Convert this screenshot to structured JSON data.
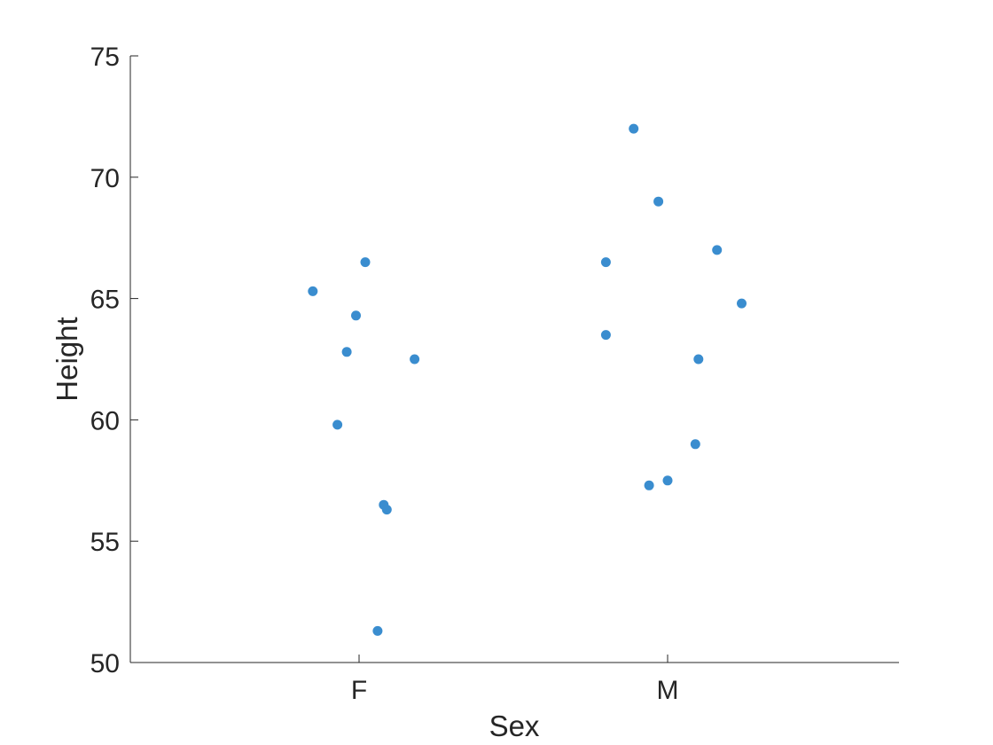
{
  "chart_data": {
    "type": "scatter",
    "title": "",
    "xlabel": "Sex",
    "ylabel": "Height",
    "categories": [
      "F",
      "M"
    ],
    "ylim": [
      50,
      75
    ],
    "yticks": [
      50,
      55,
      60,
      65,
      70,
      75
    ],
    "grid": false,
    "marker_color": "#3A8DCF",
    "points": [
      {
        "category": "F",
        "jitter": -0.15,
        "y": 65.3
      },
      {
        "category": "F",
        "jitter": 0.02,
        "y": 66.5
      },
      {
        "category": "F",
        "jitter": -0.01,
        "y": 64.3
      },
      {
        "category": "F",
        "jitter": -0.04,
        "y": 62.8
      },
      {
        "category": "F",
        "jitter": 0.18,
        "y": 62.5
      },
      {
        "category": "F",
        "jitter": -0.07,
        "y": 59.8
      },
      {
        "category": "F",
        "jitter": 0.08,
        "y": 56.5
      },
      {
        "category": "F",
        "jitter": 0.09,
        "y": 56.3
      },
      {
        "category": "F",
        "jitter": 0.06,
        "y": 51.3
      },
      {
        "category": "M",
        "jitter": -0.11,
        "y": 72.0
      },
      {
        "category": "M",
        "jitter": -0.03,
        "y": 69.0
      },
      {
        "category": "M",
        "jitter": 0.16,
        "y": 67.0
      },
      {
        "category": "M",
        "jitter": -0.2,
        "y": 66.5
      },
      {
        "category": "M",
        "jitter": 0.24,
        "y": 64.8
      },
      {
        "category": "M",
        "jitter": -0.2,
        "y": 63.5
      },
      {
        "category": "M",
        "jitter": 0.1,
        "y": 62.5
      },
      {
        "category": "M",
        "jitter": 0.09,
        "y": 59.0
      },
      {
        "category": "M",
        "jitter": -0.06,
        "y": 57.3
      },
      {
        "category": "M",
        "jitter": 0.0,
        "y": 57.5
      }
    ]
  }
}
